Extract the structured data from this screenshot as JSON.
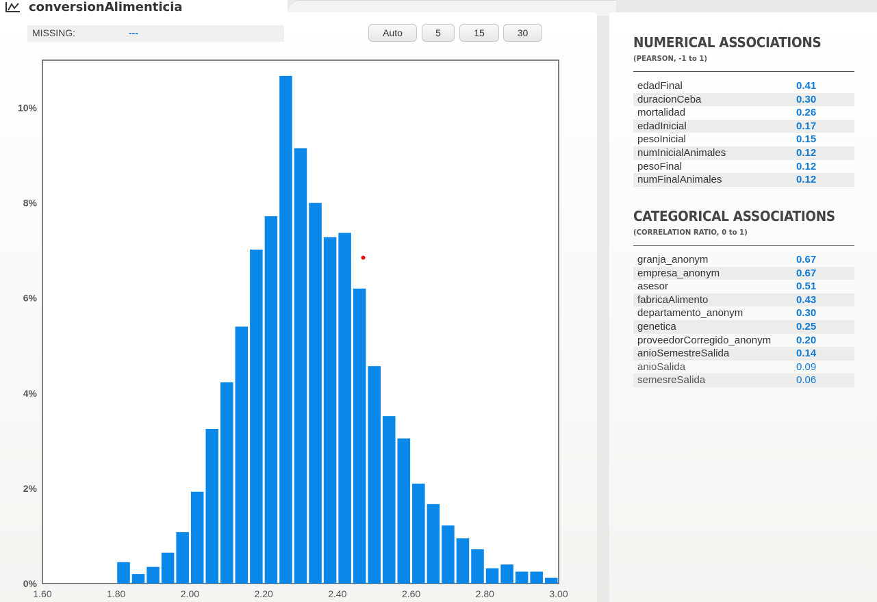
{
  "variable": {
    "title": "conversionAlimenticia",
    "icon": "chart-icon"
  },
  "missing": {
    "label": "MISSING:",
    "value": "---"
  },
  "bin_buttons": [
    "Auto",
    "5",
    "15",
    "30"
  ],
  "chart_data": {
    "type": "bar",
    "x_ticks": [
      "1.60",
      "1.80",
      "2.00",
      "2.20",
      "2.40",
      "2.60",
      "2.80",
      "3.00"
    ],
    "y_ticks": [
      "0%",
      "2%",
      "4%",
      "6%",
      "8%",
      "10%"
    ],
    "xlim": [
      1.6,
      3.0
    ],
    "ylim": [
      0,
      11
    ],
    "bin_width": 0.04,
    "bar_color": "#0a88ea",
    "bins": [
      {
        "x": 1.8,
        "y": 0.45
      },
      {
        "x": 1.84,
        "y": 0.2
      },
      {
        "x": 1.88,
        "y": 0.35
      },
      {
        "x": 1.92,
        "y": 0.65
      },
      {
        "x": 1.96,
        "y": 1.08
      },
      {
        "x": 2.0,
        "y": 1.93
      },
      {
        "x": 2.04,
        "y": 3.25
      },
      {
        "x": 2.08,
        "y": 4.23
      },
      {
        "x": 2.12,
        "y": 5.4
      },
      {
        "x": 2.16,
        "y": 7.02
      },
      {
        "x": 2.2,
        "y": 7.72
      },
      {
        "x": 2.24,
        "y": 10.67
      },
      {
        "x": 2.28,
        "y": 9.15
      },
      {
        "x": 2.32,
        "y": 8.0
      },
      {
        "x": 2.36,
        "y": 7.28
      },
      {
        "x": 2.4,
        "y": 7.37
      },
      {
        "x": 2.44,
        "y": 6.2
      },
      {
        "x": 2.48,
        "y": 4.57
      },
      {
        "x": 2.52,
        "y": 3.52
      },
      {
        "x": 2.56,
        "y": 3.05
      },
      {
        "x": 2.6,
        "y": 2.1
      },
      {
        "x": 2.64,
        "y": 1.67
      },
      {
        "x": 2.68,
        "y": 1.22
      },
      {
        "x": 2.72,
        "y": 0.95
      },
      {
        "x": 2.76,
        "y": 0.72
      },
      {
        "x": 2.8,
        "y": 0.32
      },
      {
        "x": 2.84,
        "y": 0.4
      },
      {
        "x": 2.88,
        "y": 0.25
      },
      {
        "x": 2.92,
        "y": 0.25
      },
      {
        "x": 2.96,
        "y": 0.12
      }
    ],
    "marker": {
      "x": 2.47,
      "y": 6.85,
      "color": "#e01010"
    }
  },
  "numerical": {
    "title": "NUMERICAL ASSOCIATIONS",
    "subtitle": "(PEARSON, -1 to 1)",
    "items": [
      {
        "name": "edadFinal",
        "value": "0.41"
      },
      {
        "name": "duracionCeba",
        "value": "0.30"
      },
      {
        "name": "mortalidad",
        "value": "0.26"
      },
      {
        "name": "edadInicial",
        "value": "0.17"
      },
      {
        "name": "pesoInicial",
        "value": "0.15"
      },
      {
        "name": "numInicialAnimales",
        "value": "0.12"
      },
      {
        "name": "pesoFinal",
        "value": "0.12"
      },
      {
        "name": "numFinalAnimales",
        "value": "0.12"
      }
    ]
  },
  "categorical": {
    "title": "CATEGORICAL ASSOCIATIONS",
    "subtitle": "(CORRELATION RATIO, 0 to 1)",
    "items": [
      {
        "name": "granja_anonym",
        "value": "0.67"
      },
      {
        "name": "empresa_anonym",
        "value": "0.67"
      },
      {
        "name": "asesor",
        "value": "0.51"
      },
      {
        "name": "fabricaAlimento",
        "value": "0.43"
      },
      {
        "name": "departamento_anonym",
        "value": "0.30"
      },
      {
        "name": "genetica",
        "value": "0.25"
      },
      {
        "name": "proveedorCorregido_anonym",
        "value": "0.20"
      },
      {
        "name": "anioSemestreSalida",
        "value": "0.14"
      },
      {
        "name": "anioSalida",
        "value": "0.09",
        "weak": true
      },
      {
        "name": "semesreSalida",
        "value": "0.06",
        "weak": true
      }
    ]
  }
}
